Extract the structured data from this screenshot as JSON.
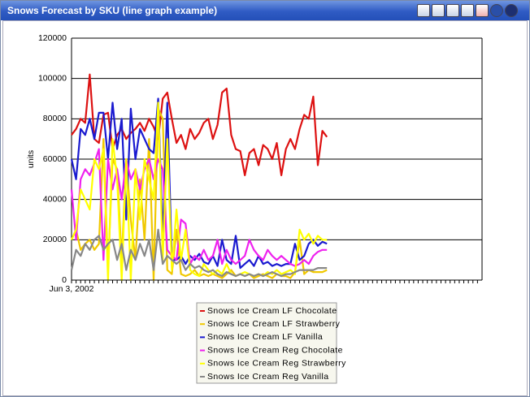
{
  "chart_data": {
    "type": "line",
    "title": "Snows Forecast by SKU (line graph example)",
    "ylabel": "units",
    "ylim": [
      0,
      120000
    ],
    "yticks": [
      0,
      20000,
      40000,
      60000,
      80000,
      100000,
      120000
    ],
    "grid": true,
    "legend": "bottom",
    "categories": [
      "Jun 3, 2002",
      null,
      null,
      null,
      null,
      null,
      null,
      null,
      null,
      null,
      null,
      null,
      null,
      null,
      null,
      null,
      null,
      null,
      null,
      null,
      null,
      null,
      null,
      null,
      null,
      null,
      null,
      null,
      null,
      null,
      null,
      null,
      null,
      null,
      null,
      null,
      null,
      null,
      null,
      null,
      null,
      null,
      null,
      null,
      null,
      null,
      null,
      null,
      null,
      null,
      null,
      null,
      null,
      null,
      null,
      null,
      null,
      null,
      null,
      null,
      null,
      null,
      null,
      null,
      null,
      null,
      null,
      null,
      null,
      null,
      null,
      null,
      null,
      null,
      null,
      null,
      null,
      null,
      null,
      null,
      null,
      null,
      null,
      null,
      null,
      null,
      null,
      null,
      null,
      null
    ],
    "series": [
      {
        "name": "Snows Ice Cream LF Chocolate",
        "color": "#dd1111",
        "values": [
          72000,
          75000,
          80000,
          78000,
          102000,
          70000,
          68000,
          82000,
          83000,
          65000,
          72000,
          75000,
          70000,
          73000,
          75000,
          78000,
          74000,
          80000,
          76000,
          70000,
          90000,
          93000,
          80000,
          68000,
          72000,
          65000,
          75000,
          70000,
          73000,
          78000,
          80000,
          70000,
          77000,
          93000,
          95000,
          72000,
          65000,
          64000,
          52000,
          63000,
          65000,
          57000,
          67000,
          65000,
          60000,
          68000,
          52000,
          65000,
          70000,
          65000,
          75000,
          82000,
          80000,
          91000,
          57000,
          74000,
          71000,
          null,
          null,
          null,
          null,
          null,
          null,
          null,
          null,
          null,
          null,
          null,
          null,
          null,
          null,
          null,
          null,
          null,
          null,
          null,
          null,
          null,
          null,
          null,
          null,
          null,
          null,
          null,
          null,
          null,
          null,
          null,
          null,
          null
        ]
      },
      {
        "name": "Snows Ice Cream LF Strawberry",
        "color": "#f0c800",
        "values": [
          20000,
          25000,
          15000,
          18000,
          20000,
          15000,
          18000,
          70000,
          5000,
          60000,
          55000,
          10000,
          60000,
          30000,
          10000,
          50000,
          20000,
          70000,
          0,
          85000,
          80000,
          5000,
          3000,
          25000,
          3000,
          2000,
          3000,
          5000,
          2000,
          3000,
          2000,
          3000,
          2000,
          1000,
          3000,
          5000,
          2000,
          3000,
          2000,
          3000,
          1000,
          2000,
          3000,
          2000,
          1000,
          3000,
          2000,
          2000,
          1000,
          4000,
          20000,
          3000,
          5000,
          4000,
          4000,
          4000,
          5000,
          null,
          null,
          null,
          null,
          null,
          null,
          null,
          null,
          null,
          null,
          null,
          null,
          null,
          null,
          null,
          null,
          null,
          null,
          null,
          null,
          null,
          null,
          null,
          null,
          null,
          null,
          null,
          null,
          null,
          null,
          null,
          null,
          null
        ]
      },
      {
        "name": "Snows Ice Cream LF Vanilla",
        "color": "#1a1ad0",
        "values": [
          60000,
          50000,
          75000,
          72000,
          80000,
          70000,
          83000,
          83000,
          60000,
          88000,
          65000,
          80000,
          30000,
          85000,
          60000,
          75000,
          70000,
          65000,
          63000,
          90000,
          20000,
          88000,
          10000,
          10000,
          12000,
          8000,
          12000,
          10000,
          13000,
          9000,
          8000,
          12000,
          7000,
          20000,
          10000,
          8000,
          22000,
          6000,
          8000,
          10000,
          7000,
          12000,
          8000,
          9000,
          7000,
          8000,
          7000,
          8000,
          8000,
          18000,
          10000,
          12000,
          18000,
          20000,
          17000,
          19000,
          18000,
          null,
          null,
          null,
          null,
          null,
          null,
          null,
          null,
          null,
          null,
          null,
          null,
          null,
          null,
          null,
          null,
          null,
          null,
          null,
          null,
          null,
          null,
          null,
          null,
          null,
          null,
          null,
          null,
          null,
          null,
          null,
          null,
          null
        ]
      },
      {
        "name": "Snows Ice Cream Reg Chocolate",
        "color": "#ee22ee",
        "values": [
          45000,
          20000,
          50000,
          55000,
          52000,
          58000,
          65000,
          10000,
          60000,
          45000,
          55000,
          40000,
          60000,
          50000,
          55000,
          45000,
          55000,
          60000,
          50000,
          60000,
          55000,
          15000,
          12000,
          10000,
          30000,
          28000,
          8000,
          12000,
          10000,
          15000,
          10000,
          12000,
          20000,
          8000,
          15000,
          10000,
          8000,
          10000,
          12000,
          20000,
          15000,
          12000,
          10000,
          15000,
          12000,
          10000,
          12000,
          10000,
          8000,
          7000,
          8000,
          10000,
          8000,
          12000,
          14000,
          15000,
          15000,
          null,
          null,
          null,
          null,
          null,
          null,
          null,
          null,
          null,
          null,
          null,
          null,
          null,
          null,
          null,
          null,
          null,
          null,
          null,
          null,
          null,
          null,
          null,
          null,
          null,
          null,
          null,
          null,
          null,
          null,
          null,
          null,
          null
        ]
      },
      {
        "name": "Snows Ice Cream Reg Strawberry",
        "color": "#ffff00",
        "values": [
          20000,
          25000,
          45000,
          40000,
          35000,
          60000,
          55000,
          65000,
          0,
          70000,
          50000,
          0,
          60000,
          0,
          55000,
          30000,
          60000,
          50000,
          40000,
          88000,
          10000,
          70000,
          5000,
          35000,
          10000,
          25000,
          5000,
          3000,
          2000,
          8000,
          5000,
          3000,
          5000,
          3000,
          8000,
          3000,
          2000,
          3000,
          4000,
          3000,
          2000,
          3000,
          2000,
          4000,
          3000,
          5000,
          3000,
          4000,
          5000,
          3000,
          25000,
          20000,
          23000,
          18000,
          22000,
          20000,
          20000,
          null,
          null,
          null,
          null,
          null,
          null,
          null,
          null,
          null,
          null,
          null,
          null,
          null,
          null,
          null,
          null,
          null,
          null,
          null,
          null,
          null,
          null,
          null,
          null,
          null,
          null,
          null,
          null,
          null,
          null,
          null,
          null,
          null
        ]
      },
      {
        "name": "Snows Ice Cream Reg Vanilla",
        "color": "#888888",
        "values": [
          5000,
          15000,
          12000,
          18000,
          15000,
          20000,
          22000,
          15000,
          18000,
          20000,
          10000,
          18000,
          5000,
          15000,
          10000,
          18000,
          12000,
          20000,
          5000,
          25000,
          8000,
          12000,
          10000,
          8000,
          10000,
          5000,
          8000,
          6000,
          7000,
          5000,
          4000,
          5000,
          3000,
          2000,
          4000,
          3000,
          2000,
          3000,
          2000,
          3000,
          2000,
          3000,
          2000,
          3000,
          4000,
          3000,
          2000,
          3000,
          3000,
          4000,
          5000,
          5000,
          5000,
          5000,
          6000,
          6000,
          6000,
          null,
          null,
          null,
          null,
          null,
          null,
          null,
          null,
          null,
          null,
          null,
          null,
          null,
          null,
          null,
          null,
          null,
          null,
          null,
          null,
          null,
          null,
          null,
          null,
          null,
          null,
          null,
          null,
          null,
          null,
          null,
          null,
          null
        ]
      }
    ]
  }
}
